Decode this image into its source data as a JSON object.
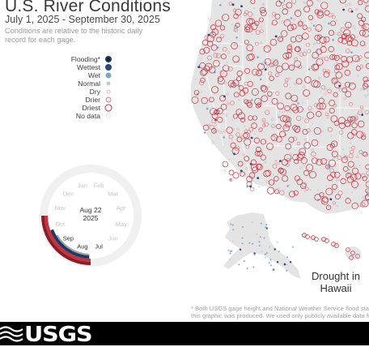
{
  "header": {
    "title": "U.S. River Conditions",
    "date_range": "July 1, 2025 - September 30, 2025",
    "subtitle": "Conditions are relative to the historic daily record for each gage."
  },
  "legend": {
    "items": [
      {
        "label": "Flooding*",
        "symbol": "dot-flood",
        "color": "#1e3a5f"
      },
      {
        "label": "Wettest",
        "symbol": "dot-wettest",
        "color": "#264a75"
      },
      {
        "label": "Wet",
        "symbol": "dot-wet",
        "color": "#7fa9c9"
      },
      {
        "label": "Normal",
        "symbol": "dot-normal",
        "color": "#c8c8c8"
      },
      {
        "label": "Dry",
        "symbol": "ring-dry",
        "color": "#e6a0a8"
      },
      {
        "label": "Drier",
        "symbol": "ring-drier",
        "color": "#d9707c"
      },
      {
        "label": "Driest",
        "symbol": "ring-driest",
        "color": "#c8323f"
      },
      {
        "label": "No data",
        "symbol": "ring-nodata",
        "color": "#dddddd"
      }
    ]
  },
  "clock": {
    "center_date": "Aug 22",
    "center_year": "2025",
    "months": [
      "Jan",
      "Feb",
      "Mar",
      "Apr",
      "May",
      "Jun",
      "Jul",
      "Aug",
      "Sep",
      "Oct",
      "Nov",
      "Dec"
    ],
    "active_months": [
      "Jul",
      "Aug",
      "Sep"
    ],
    "colors": {
      "dry": "#c8323f",
      "wet": "#1e3a5f",
      "normal": "#9aa0a8",
      "track": "#f0f0f0"
    }
  },
  "map": {
    "land_color": "#e4e4e4",
    "border_color": "#ffffff",
    "inset_label": "Drought in Hawaii"
  },
  "footnote": {
    "line1": "* Both USGS gage height and National Weather Service flood stage le",
    "line2": "this graphic was produced. We used only publicly available data fro"
  },
  "footer": {
    "logo_text": "USGS"
  }
}
